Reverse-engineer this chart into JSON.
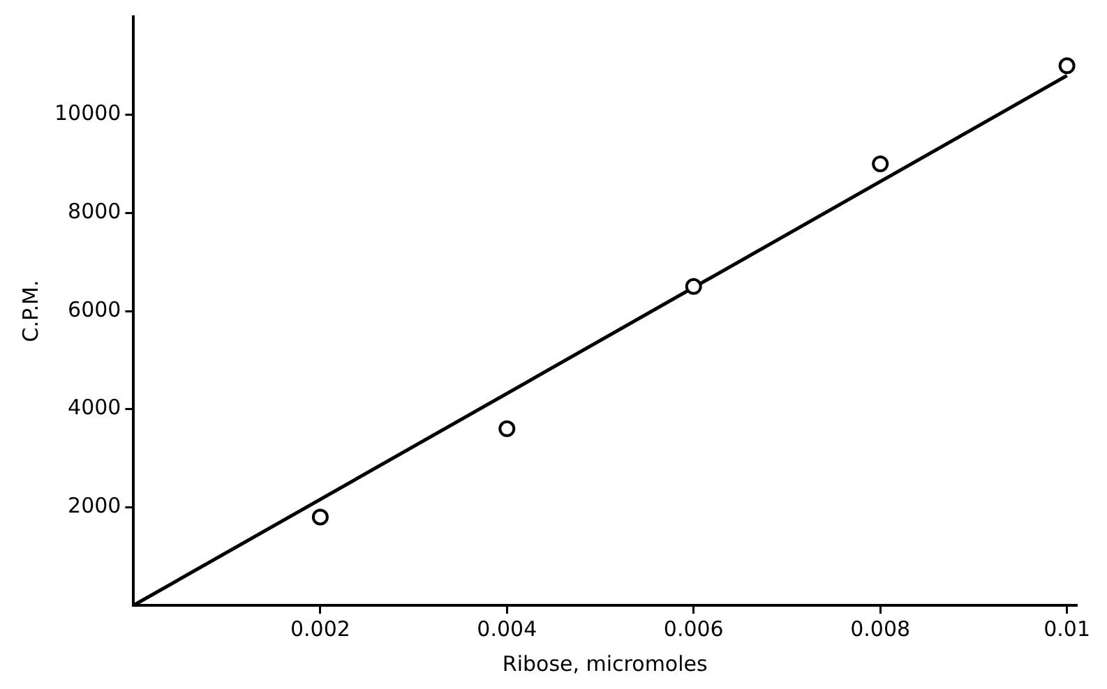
{
  "chart_data": {
    "type": "scatter",
    "xlabel": "Ribose, micromoles",
    "ylabel": "C.P.M.",
    "xlim": [
      0,
      0.0101
    ],
    "ylim": [
      0,
      12000
    ],
    "xticks": [
      0.002,
      0.004,
      0.006,
      0.008,
      {
        "value": 0.01,
        "label": "0.01"
      }
    ],
    "yticks": [
      2000,
      4000,
      6000,
      8000,
      10000
    ],
    "marker": "circle",
    "grid": false,
    "legend": false,
    "series": [
      {
        "color": "#000000",
        "x": [
          0.002,
          0.004,
          0.006,
          0.008,
          0.01
        ],
        "values": [
          1800,
          3600,
          6500,
          9000,
          11000
        ]
      },
      {
        "type": "line",
        "color": "#000000",
        "x": [
          0,
          0.01
        ],
        "values": [
          0,
          10800
        ],
        "marker": "none",
        "line_style": "solid"
      }
    ]
  }
}
